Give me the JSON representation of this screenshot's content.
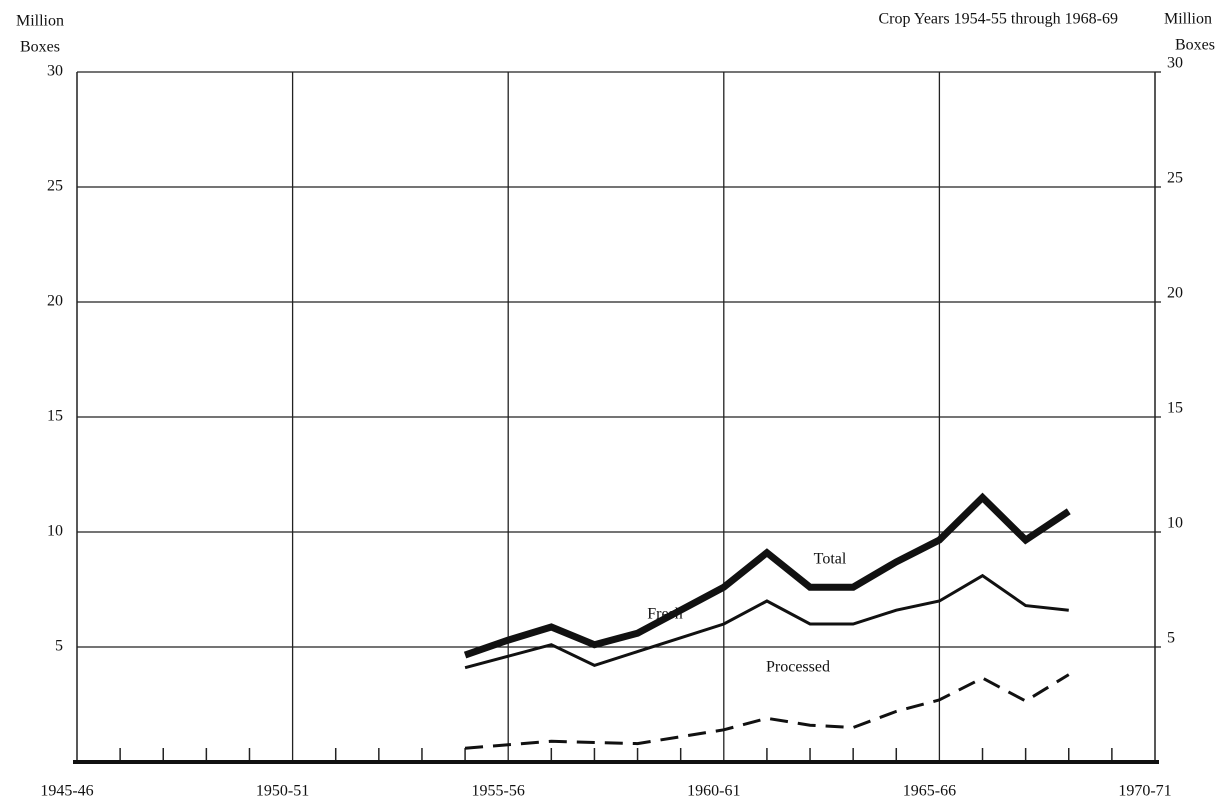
{
  "chart_data": {
    "type": "line",
    "subtitle": "Crop Years 1954-55 through 1968-69",
    "y_label": [
      "Million",
      "Boxes"
    ],
    "y2_label": [
      "Million",
      "Boxes"
    ],
    "x": [
      1954,
      1955,
      1956,
      1957,
      1958,
      1959,
      1960,
      1961,
      1962,
      1963,
      1964,
      1965,
      1966,
      1967,
      1968
    ],
    "series": [
      {
        "name": "Total",
        "color": "#111111",
        "style": "solid",
        "width": 7,
        "values": [
          4.65,
          5.3,
          5.87,
          5.1,
          5.6,
          6.6,
          7.6,
          9.1,
          7.6,
          7.6,
          8.7,
          9.65,
          11.5,
          9.65,
          10.9
        ]
      },
      {
        "name": "Fresh",
        "color": "#111111",
        "style": "solid",
        "width": 3,
        "values": [
          4.1,
          4.6,
          5.1,
          4.2,
          4.8,
          5.4,
          6.0,
          7.0,
          6.0,
          6.0,
          6.6,
          7.0,
          8.1,
          6.8,
          6.6
        ]
      },
      {
        "name": "Processed",
        "color": "#111111",
        "style": "dashed",
        "width": 3,
        "values": [
          0.6,
          0.75,
          0.9,
          0.85,
          0.8,
          1.1,
          1.4,
          1.9,
          1.6,
          1.5,
          2.2,
          2.7,
          3.65,
          2.65,
          3.8
        ]
      }
    ],
    "xlim": [
      1945,
      1970
    ],
    "xticks": [
      {
        "value": 1945,
        "label": "1945-46"
      },
      {
        "value": 1950,
        "label": "1950-51"
      },
      {
        "value": 1955,
        "label": "1955-56"
      },
      {
        "value": 1960,
        "label": "1960-61"
      },
      {
        "value": 1965,
        "label": "1965-66"
      },
      {
        "value": 1970,
        "label": "1970-71"
      }
    ],
    "xminorticks": [
      1946,
      1947,
      1948,
      1949,
      1951,
      1952,
      1953,
      1954,
      1956,
      1957,
      1958,
      1959,
      1961,
      1962,
      1963,
      1964,
      1966,
      1967,
      1968,
      1969
    ],
    "ylim": [
      0,
      30
    ],
    "yticks": [
      5,
      10,
      15,
      20,
      25,
      30
    ],
    "y2lim": [
      0,
      30
    ],
    "y2ticks": [
      5,
      10,
      15,
      20,
      25,
      30
    ],
    "grid": true
  }
}
